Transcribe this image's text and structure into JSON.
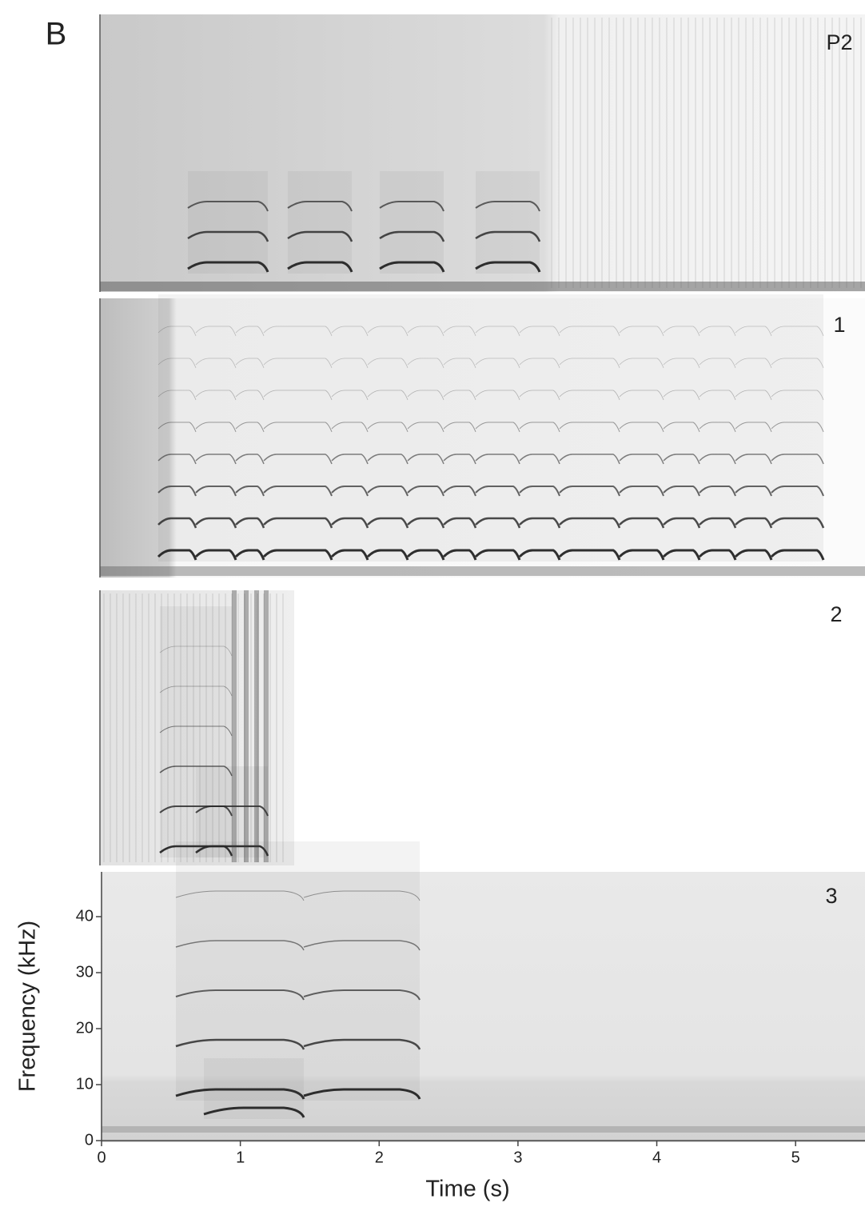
{
  "figure": {
    "label": "B",
    "panels": [
      {
        "label": "P2"
      },
      {
        "label": "1"
      },
      {
        "label": "2"
      },
      {
        "label": "3"
      }
    ],
    "xlabel": "Time (s)",
    "ylabel": "Frequency (kHz)",
    "xlim": [
      0,
      5.5
    ],
    "xticks": [
      0,
      1,
      2,
      3,
      4,
      5
    ],
    "ylim": [
      0,
      48
    ],
    "yticks": [
      0,
      10,
      20,
      30,
      40
    ]
  }
}
